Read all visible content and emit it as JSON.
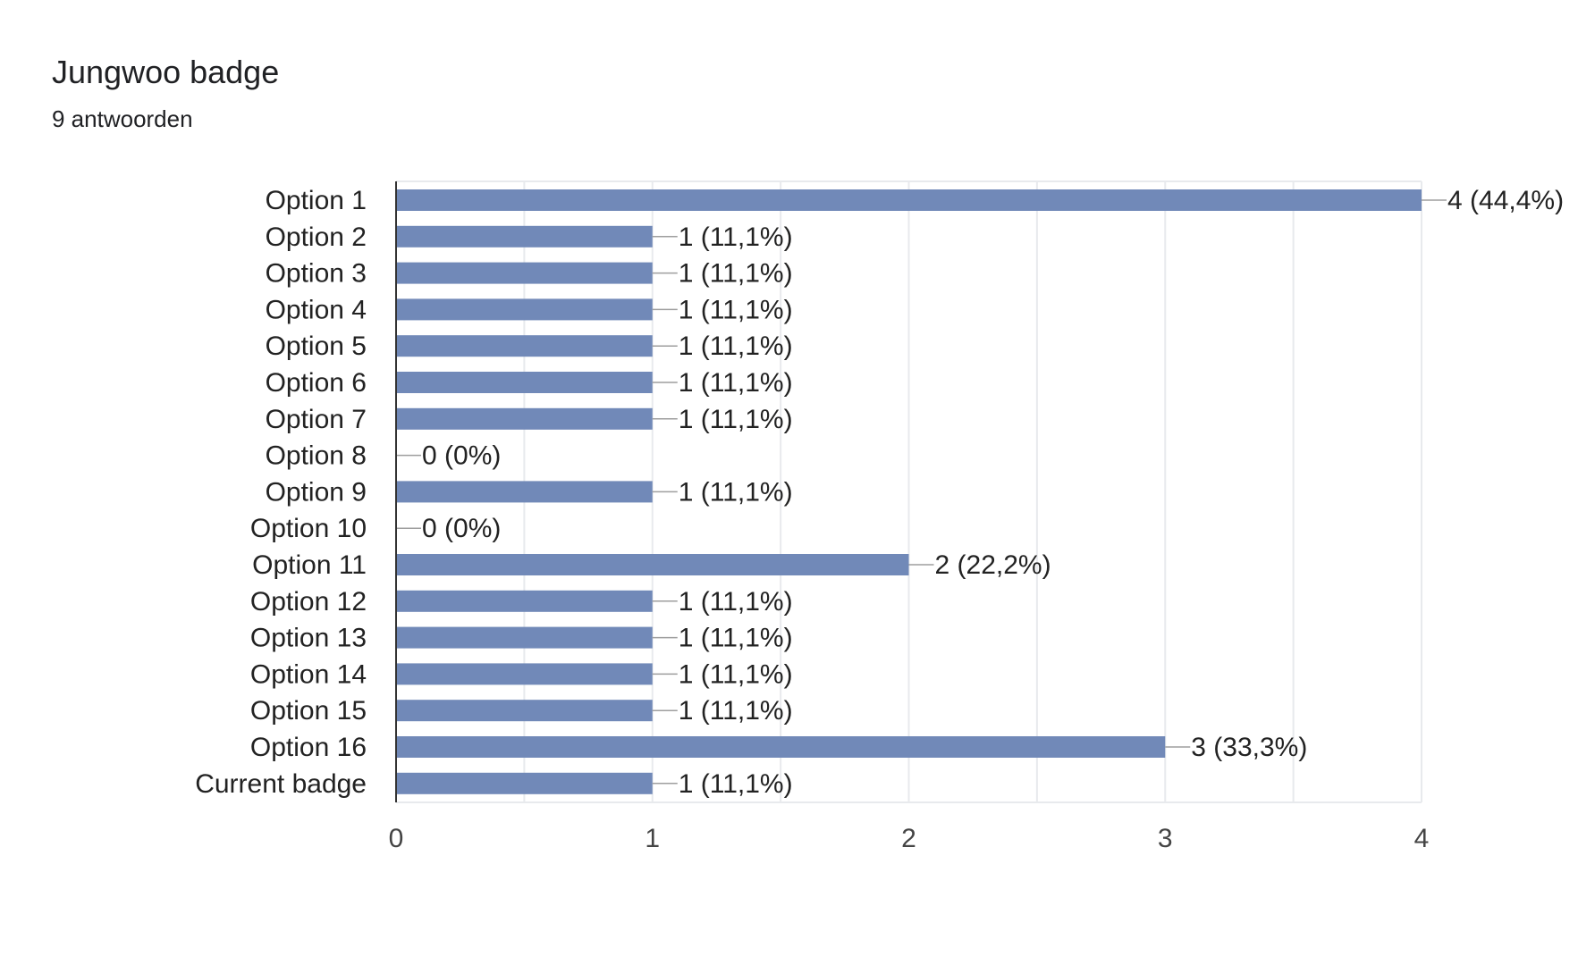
{
  "question": {
    "title": "Jungwoo badge",
    "responses": "9 antwoorden"
  },
  "colors": {
    "bar": "#7189b8",
    "grid": "#e8eaed",
    "axis": "#333333",
    "leader": "#9e9e9e"
  },
  "chart_data": {
    "type": "bar",
    "orientation": "horizontal",
    "categories": [
      "Option 1",
      "Option 2",
      "Option 3",
      "Option 4",
      "Option 5",
      "Option 6",
      "Option 7",
      "Option 8",
      "Option 9",
      "Option 10",
      "Option 11",
      "Option 12",
      "Option 13",
      "Option 14",
      "Option 15",
      "Option 16",
      "Current badge"
    ],
    "values": [
      4,
      1,
      1,
      1,
      1,
      1,
      1,
      0,
      1,
      0,
      2,
      1,
      1,
      1,
      1,
      3,
      1
    ],
    "data_labels": [
      "4 (44,4%)",
      "1 (11,1%)",
      "1 (11,1%)",
      "1 (11,1%)",
      "1 (11,1%)",
      "1 (11,1%)",
      "1 (11,1%)",
      "0 (0%)",
      "1 (11,1%)",
      "0 (0%)",
      "2 (22,2%)",
      "1 (11,1%)",
      "1 (11,1%)",
      "1 (11,1%)",
      "1 (11,1%)",
      "3 (33,3%)",
      "1 (11,1%)"
    ],
    "xlim": [
      0,
      4
    ],
    "x_ticks": [
      "0",
      "1",
      "2",
      "3",
      "4"
    ],
    "grid": true,
    "legend": "none"
  }
}
